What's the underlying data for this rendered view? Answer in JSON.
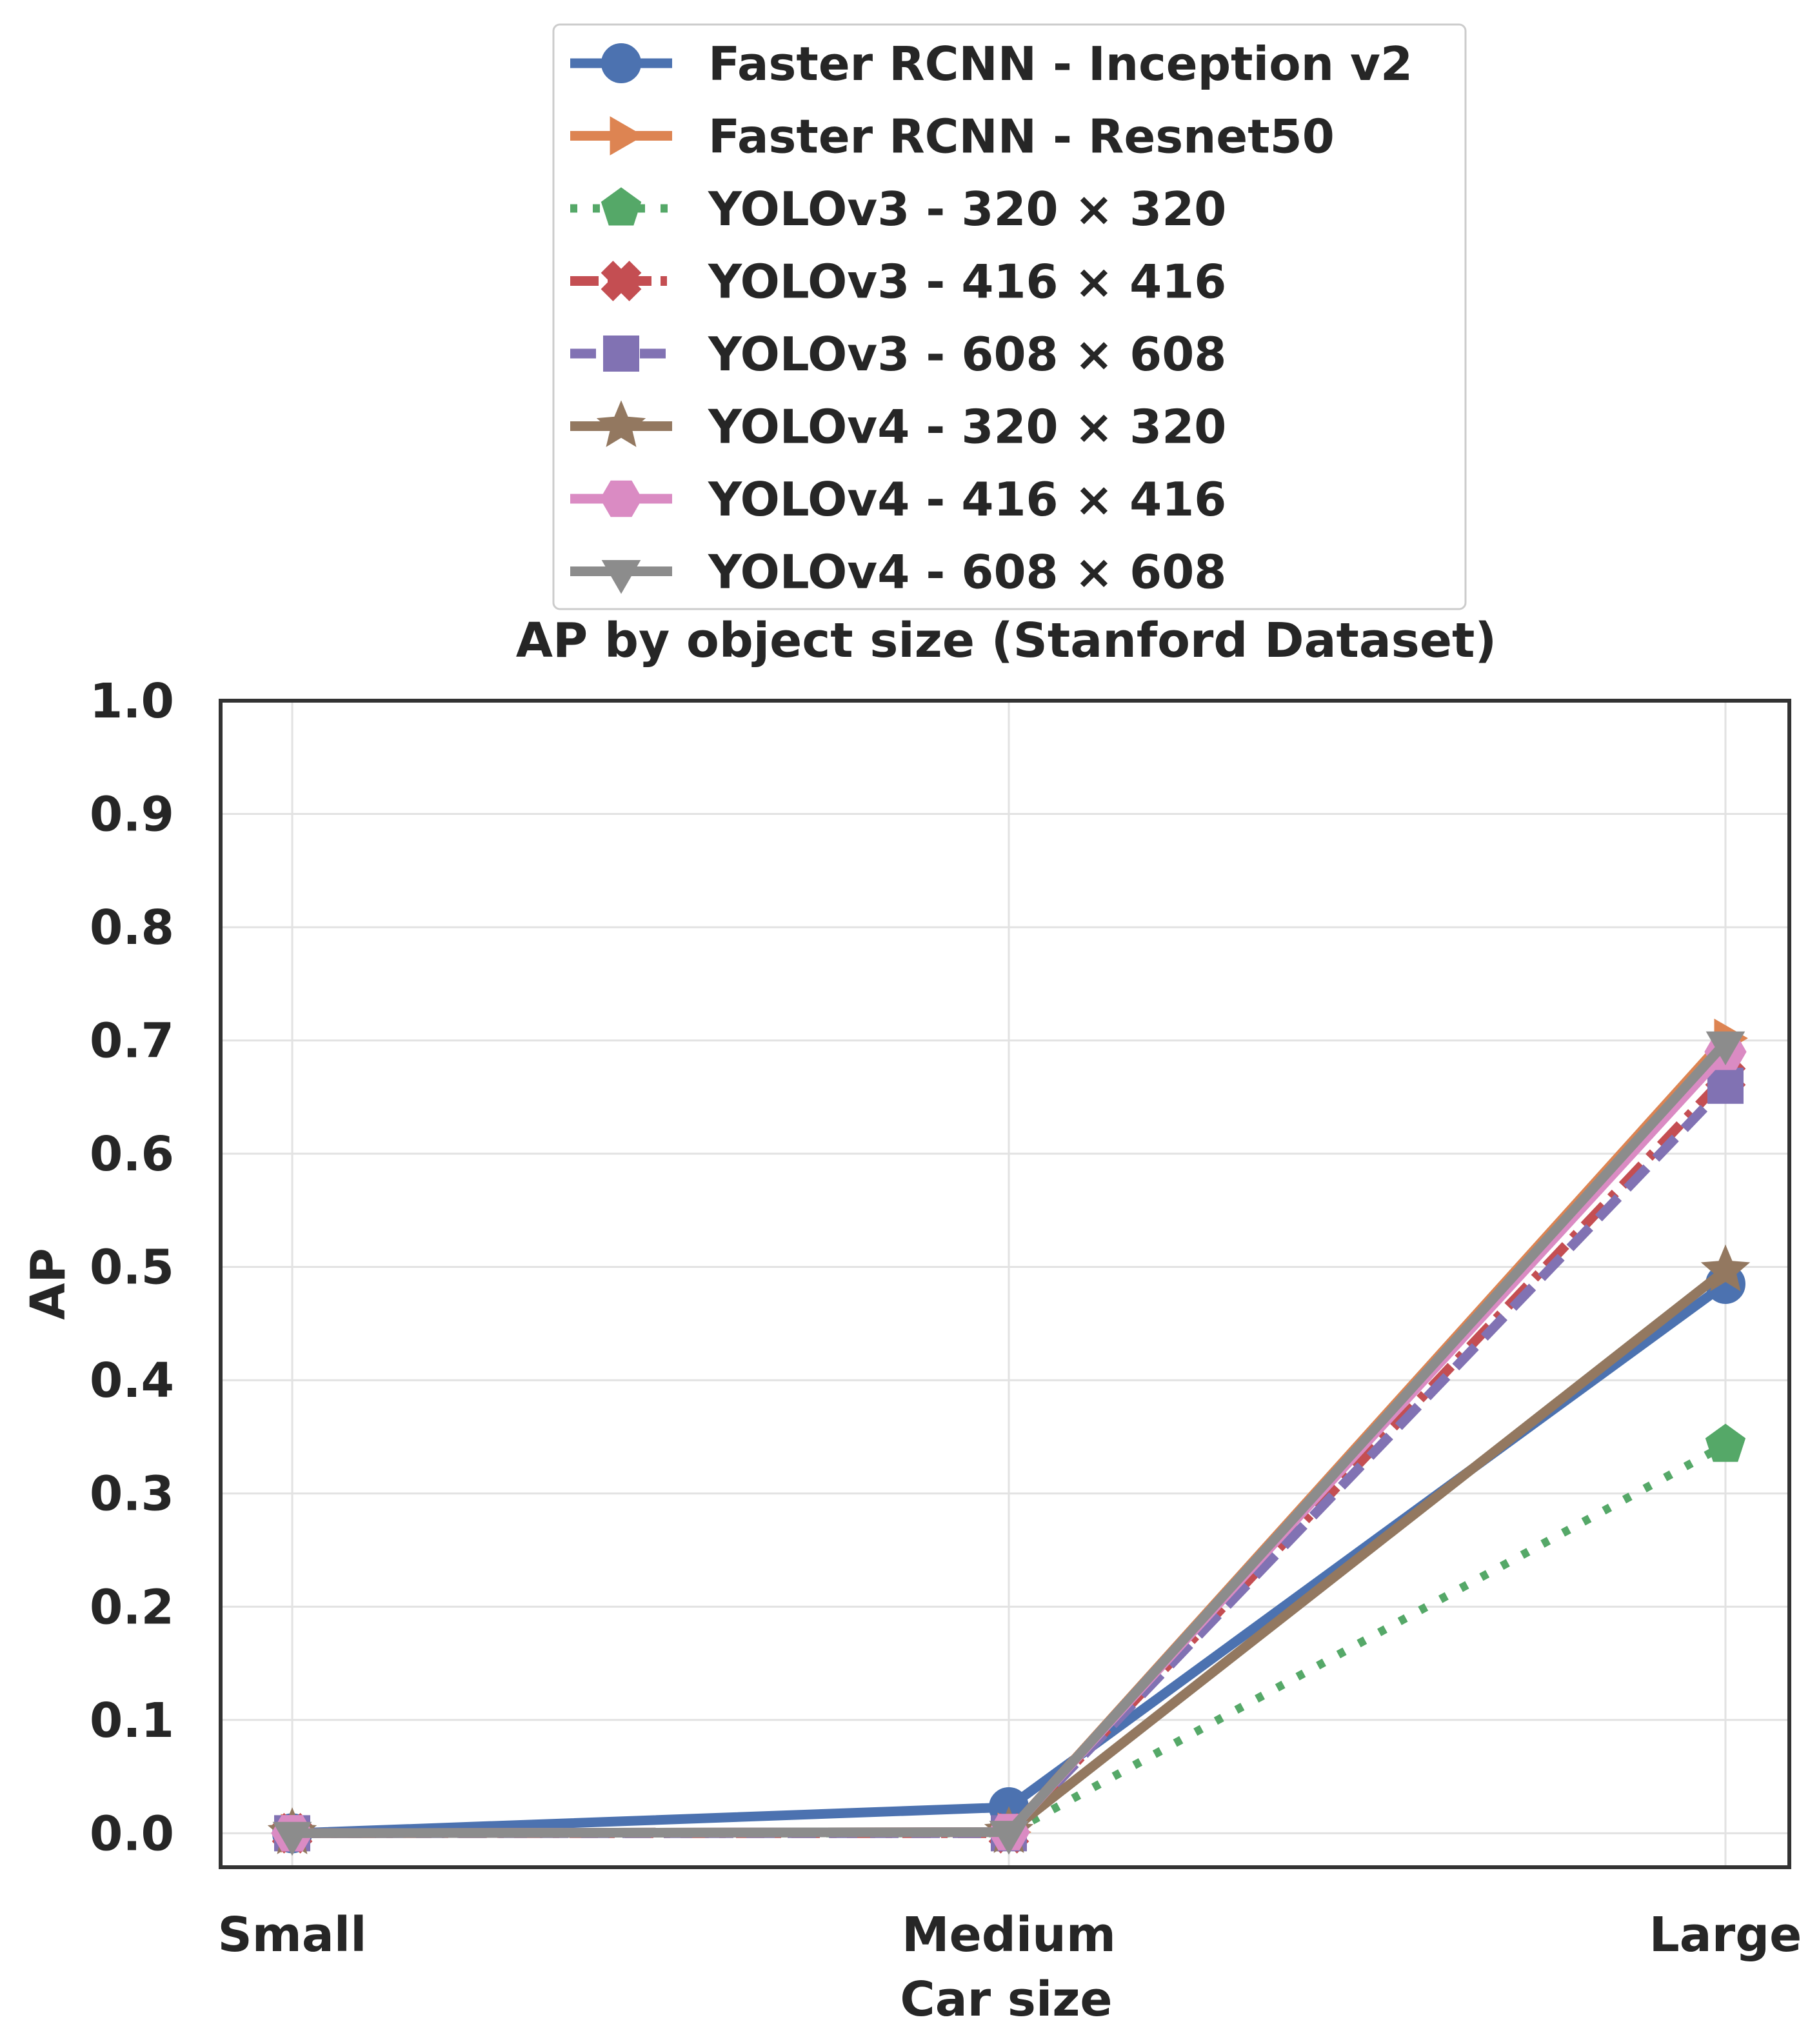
{
  "chart_data": {
    "type": "line",
    "title": "AP by object size (Stanford Dataset)",
    "xlabel": "Car size",
    "ylabel": "AP",
    "categories": [
      "Small",
      "Medium",
      "Large"
    ],
    "ylim": [
      -0.03,
      1.0
    ],
    "yticks": [
      "0.0",
      "0.1",
      "0.2",
      "0.3",
      "0.4",
      "0.5",
      "0.6",
      "0.7",
      "0.8",
      "0.9",
      "1.0"
    ],
    "grid": true,
    "legend_position": "above-plot",
    "series": [
      {
        "name": "Faster RCNN - Inception v2",
        "values": [
          0.0,
          0.023,
          0.485
        ],
        "color": "#4c72b0",
        "marker": "circle",
        "dash": "solid"
      },
      {
        "name": "Faster RCNN - Resnet50",
        "values": [
          0.0,
          0.001,
          0.702
        ],
        "color": "#dd8452",
        "marker": "triangle-right",
        "dash": "solid"
      },
      {
        "name": "YOLOv3 - 320 × 320",
        "values": [
          0.0,
          0.0,
          0.343
        ],
        "color": "#55a868",
        "marker": "pentagon",
        "dash": "dotted"
      },
      {
        "name": "YOLOv3 - 416 × 416",
        "values": [
          0.0,
          0.0,
          0.668
        ],
        "color": "#c44e52",
        "marker": "x-filled",
        "dash": "dashdot"
      },
      {
        "name": "YOLOv3 - 608 × 608",
        "values": [
          0.0,
          0.0,
          0.66
        ],
        "color": "#8172b3",
        "marker": "square",
        "dash": "dashed"
      },
      {
        "name": "YOLOv4 - 320 × 320",
        "values": [
          0.0,
          0.001,
          0.497
        ],
        "color": "#937860",
        "marker": "star",
        "dash": "solid"
      },
      {
        "name": "YOLOv4 - 416 × 416",
        "values": [
          0.0,
          0.001,
          0.69
        ],
        "color": "#da8bc3",
        "marker": "hexagon",
        "dash": "solid"
      },
      {
        "name": "YOLOv4 - 608 × 608",
        "values": [
          0.0,
          0.001,
          0.698
        ],
        "color": "#8c8c8c",
        "marker": "triangle-down",
        "dash": "solid"
      }
    ]
  }
}
